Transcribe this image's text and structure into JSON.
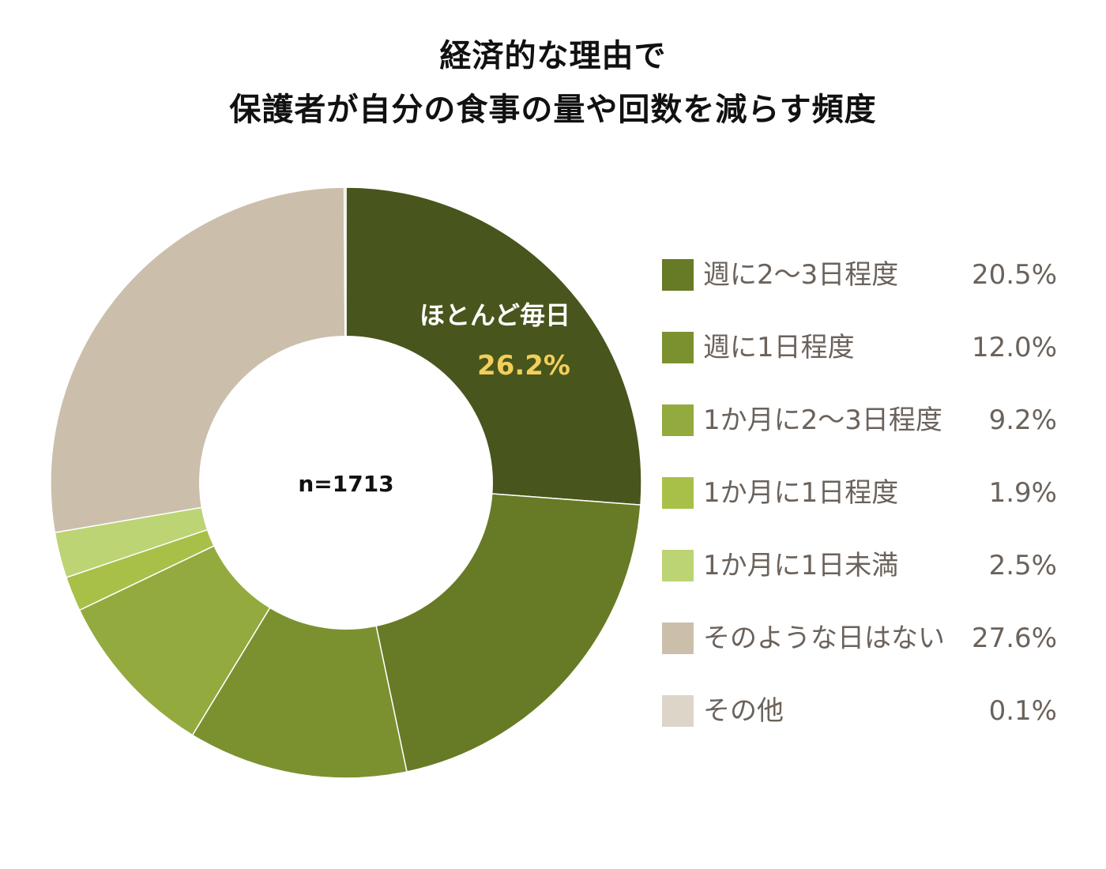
{
  "title": {
    "line1": "経済的な理由で",
    "line2": "保護者が自分の食事の量や回数を減らす頻度"
  },
  "chart_data": {
    "type": "pie",
    "sample_label": "n=1713",
    "callout": {
      "label": "ほとんど毎日",
      "value": "26.2%",
      "label_color": "#ffffff",
      "value_color": "#f2cf5a"
    },
    "categories": [
      "ほとんど毎日",
      "週に2〜3日程度",
      "週に1日程度",
      "1か月に2〜3日程度",
      "1か月に1日程度",
      "1か月に1日未満",
      "そのような日はない",
      "その他"
    ],
    "values": [
      26.2,
      20.5,
      12.0,
      9.2,
      1.9,
      2.5,
      27.6,
      0.1
    ],
    "colors": [
      "#48551c",
      "#677a25",
      "#7b9130",
      "#93aa3e",
      "#a8c048",
      "#bcd474",
      "#cbbfab",
      "#ddd5c8"
    ],
    "legend": [
      {
        "label": "週に2〜3日程度",
        "value": "20.5%",
        "color": "#677a25"
      },
      {
        "label": "週に1日程度",
        "value": "12.0%",
        "color": "#7b9130"
      },
      {
        "label": "1か月に2〜3日程度",
        "value": "9.2%",
        "color": "#93aa3e"
      },
      {
        "label": "1か月に1日程度",
        "value": "1.9%",
        "color": "#a8c048"
      },
      {
        "label": "1か月に1日未満",
        "value": "2.5%",
        "color": "#bcd474"
      },
      {
        "label": "そのような日はない",
        "value": "27.6%",
        "color": "#cbbfab"
      },
      {
        "label": "その他",
        "value": "0.1%",
        "color": "#ddd5c8"
      }
    ],
    "legend_placement": "right"
  }
}
